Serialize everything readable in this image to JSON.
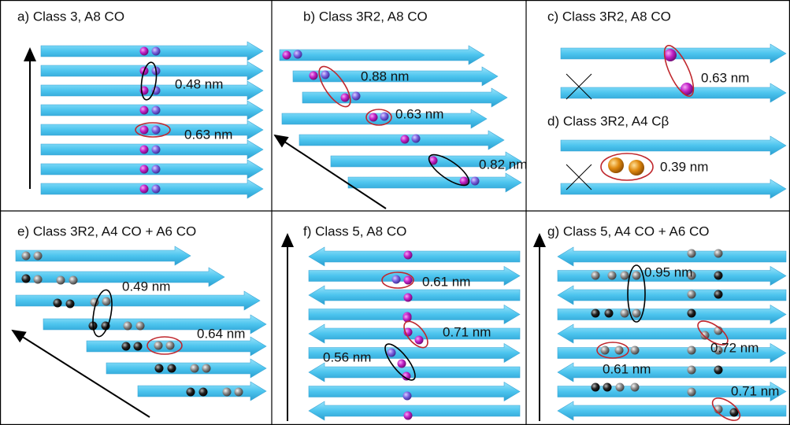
{
  "panels": [
    {
      "label": "a) Class 3, A8 CO",
      "annotations": [
        "0.48 nm",
        "0.63 nm"
      ]
    },
    {
      "label": "b) Class 3R2, A8 CO",
      "annotations": [
        "0.88 nm",
        "0.63 nm",
        "0.82 nm"
      ]
    },
    {
      "label": "c) Class 3R2, A8 CO",
      "annotations": [
        "0.63 nm"
      ]
    },
    {
      "label": "d) Class 3R2, A4 Cβ",
      "annotations": [
        "0.39 nm"
      ]
    },
    {
      "label": "e) Class 3R2, A4 CO + A6 CO",
      "annotations": [
        "0.49 nm",
        "0.64 nm"
      ]
    },
    {
      "label": "f) Class 5, A8 CO",
      "annotations": [
        "0.61 nm",
        "0.71 nm",
        "0.56 nm"
      ]
    },
    {
      "label": "g) Class 5, A4 CO + A6 CO",
      "annotations": [
        "0.95 nm",
        "0.72 nm",
        "0.61 nm",
        "0.71 nm"
      ]
    }
  ]
}
